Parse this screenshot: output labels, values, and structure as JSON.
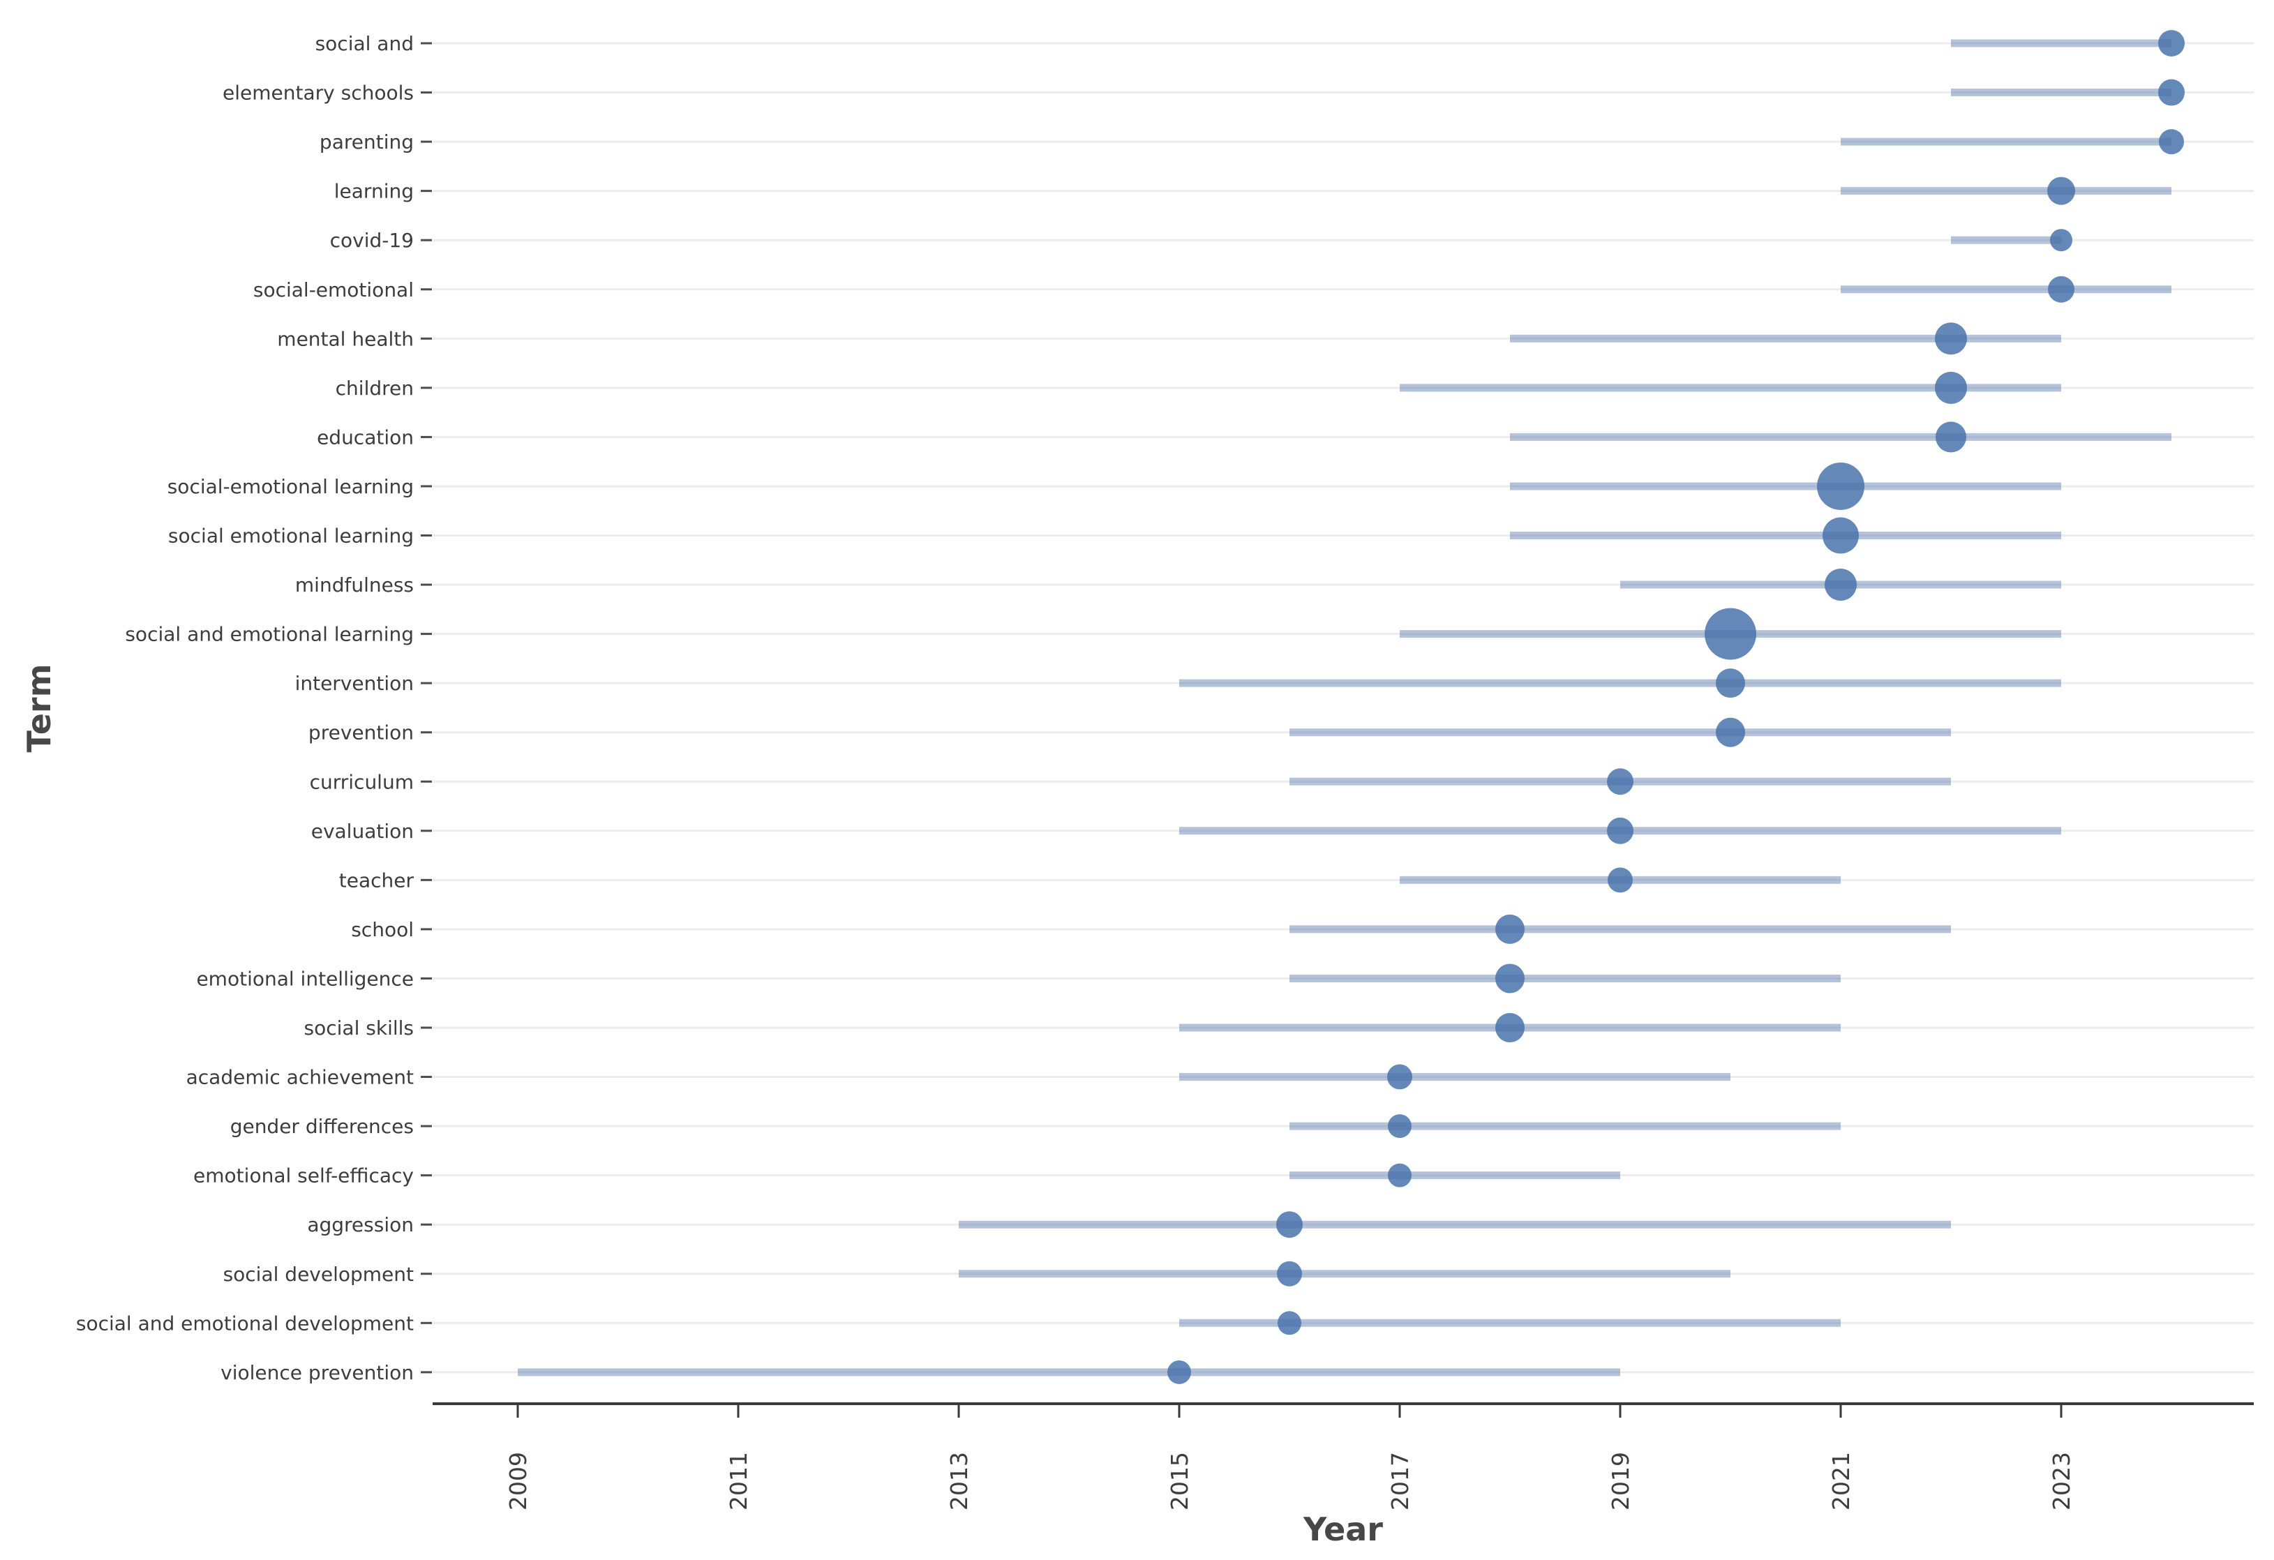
{
  "axes": {
    "x_title": "Year",
    "y_title": "Term",
    "x_ticks": [
      2009,
      2011,
      2013,
      2015,
      2017,
      2019,
      2021,
      2023
    ],
    "x_range": [
      2008.2,
      2024.8
    ],
    "x_tick_rotation_deg": 90,
    "grid": "horizontal-only"
  },
  "style": {
    "background": "#ffffff",
    "bubble_fill": "#6488b8",
    "range_line_rgba": "rgba(77,111,168,0.42)",
    "gridline_color": "#ececec",
    "axis_line_color": "#3a3a3a",
    "tick_color": "#3a3a3a",
    "text_color": "#3d3d3d",
    "title_color": "#474747"
  },
  "chart_data": {
    "type": "scatter",
    "subtype": "trend-topics-dumbbell",
    "title": "",
    "xlabel": "Year",
    "ylabel": "Term",
    "legend": "none",
    "series": [
      {
        "term": "social and",
        "year_start": 2022,
        "year_peak": 2024,
        "year_end": 2024,
        "bubble_radius_px": 19
      },
      {
        "term": "elementary schools",
        "year_start": 2022,
        "year_peak": 2024,
        "year_end": 2024,
        "bubble_radius_px": 19
      },
      {
        "term": "parenting",
        "year_start": 2021,
        "year_peak": 2024,
        "year_end": 2024,
        "bubble_radius_px": 18
      },
      {
        "term": "learning",
        "year_start": 2021,
        "year_peak": 2023,
        "year_end": 2024,
        "bubble_radius_px": 20
      },
      {
        "term": "covid-19",
        "year_start": 2022,
        "year_peak": 2023,
        "year_end": 2023,
        "bubble_radius_px": 16
      },
      {
        "term": "social-emotional",
        "year_start": 2021,
        "year_peak": 2023,
        "year_end": 2024,
        "bubble_radius_px": 19
      },
      {
        "term": "mental health",
        "year_start": 2018,
        "year_peak": 2022,
        "year_end": 2023,
        "bubble_radius_px": 23
      },
      {
        "term": "children",
        "year_start": 2017,
        "year_peak": 2022,
        "year_end": 2023,
        "bubble_radius_px": 23
      },
      {
        "term": "education",
        "year_start": 2018,
        "year_peak": 2022,
        "year_end": 2024,
        "bubble_radius_px": 22
      },
      {
        "term": "social-emotional learning",
        "year_start": 2018,
        "year_peak": 2021,
        "year_end": 2023,
        "bubble_radius_px": 34
      },
      {
        "term": "social emotional learning",
        "year_start": 2018,
        "year_peak": 2021,
        "year_end": 2023,
        "bubble_radius_px": 26
      },
      {
        "term": "mindfulness",
        "year_start": 2019,
        "year_peak": 2021,
        "year_end": 2023,
        "bubble_radius_px": 23
      },
      {
        "term": "social and emotional learning",
        "year_start": 2017,
        "year_peak": 2020,
        "year_end": 2023,
        "bubble_radius_px": 37
      },
      {
        "term": "intervention",
        "year_start": 2015,
        "year_peak": 2020,
        "year_end": 2023,
        "bubble_radius_px": 21
      },
      {
        "term": "prevention",
        "year_start": 2016,
        "year_peak": 2020,
        "year_end": 2022,
        "bubble_radius_px": 21
      },
      {
        "term": "curriculum",
        "year_start": 2016,
        "year_peak": 2019,
        "year_end": 2022,
        "bubble_radius_px": 19
      },
      {
        "term": "evaluation",
        "year_start": 2015,
        "year_peak": 2019,
        "year_end": 2023,
        "bubble_radius_px": 19
      },
      {
        "term": "teacher",
        "year_start": 2017,
        "year_peak": 2019,
        "year_end": 2021,
        "bubble_radius_px": 18
      },
      {
        "term": "school",
        "year_start": 2016,
        "year_peak": 2018,
        "year_end": 2022,
        "bubble_radius_px": 21
      },
      {
        "term": "emotional intelligence",
        "year_start": 2016,
        "year_peak": 2018,
        "year_end": 2021,
        "bubble_radius_px": 21
      },
      {
        "term": "social skills",
        "year_start": 2015,
        "year_peak": 2018,
        "year_end": 2021,
        "bubble_radius_px": 21
      },
      {
        "term": "academic achievement",
        "year_start": 2015,
        "year_peak": 2017,
        "year_end": 2020,
        "bubble_radius_px": 18
      },
      {
        "term": "gender differences",
        "year_start": 2016,
        "year_peak": 2017,
        "year_end": 2021,
        "bubble_radius_px": 17
      },
      {
        "term": "emotional self-efficacy",
        "year_start": 2016,
        "year_peak": 2017,
        "year_end": 2019,
        "bubble_radius_px": 17
      },
      {
        "term": "aggression",
        "year_start": 2013,
        "year_peak": 2016,
        "year_end": 2022,
        "bubble_radius_px": 19
      },
      {
        "term": "social development",
        "year_start": 2013,
        "year_peak": 2016,
        "year_end": 2020,
        "bubble_radius_px": 18
      },
      {
        "term": "social and emotional development",
        "year_start": 2015,
        "year_peak": 2016,
        "year_end": 2021,
        "bubble_radius_px": 17
      },
      {
        "term": "violence prevention",
        "year_start": 2009,
        "year_peak": 2015,
        "year_end": 2019,
        "bubble_radius_px": 17
      }
    ]
  }
}
